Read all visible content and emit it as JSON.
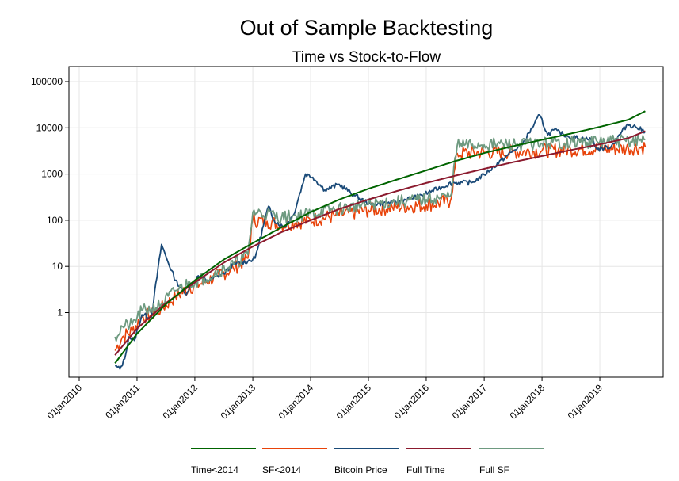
{
  "chart_data": {
    "type": "line",
    "title": "Out of Sample Backtesting",
    "subtitle": "Time vs Stock-to-Flow",
    "xlabel": "",
    "ylabel": "",
    "yscale": "log",
    "ylim": [
      0.03,
      200000
    ],
    "xlim": [
      "2010-01-01",
      "2020-01-01"
    ],
    "grid": true,
    "legend_position": "bottom",
    "x_ticks": [
      "01jan2010",
      "01jan2011",
      "01jan2012",
      "01jan2013",
      "01jan2014",
      "01jan2015",
      "01jan2016",
      "01jan2017",
      "01jan2018",
      "01jan2019"
    ],
    "y_ticks": [
      {
        "label": "1",
        "value": 1
      },
      {
        "label": "10",
        "value": 10
      },
      {
        "label": "100",
        "value": 100
      },
      {
        "label": "1000",
        "value": 1000
      },
      {
        "label": "10000",
        "value": 10000
      },
      {
        "label": "100000",
        "value": 100000
      }
    ],
    "series": [
      {
        "name": "Time<2014",
        "color": "#006400",
        "points": [
          [
            "2010-08-15",
            0.08
          ],
          [
            "2011-01-01",
            0.35
          ],
          [
            "2011-07-01",
            1.5
          ],
          [
            "2012-01-01",
            5
          ],
          [
            "2012-07-01",
            14
          ],
          [
            "2013-01-01",
            32
          ],
          [
            "2013-07-01",
            70
          ],
          [
            "2014-01-01",
            150
          ],
          [
            "2014-07-01",
            280
          ],
          [
            "2015-01-01",
            480
          ],
          [
            "2015-07-01",
            760
          ],
          [
            "2016-01-01",
            1200
          ],
          [
            "2016-07-01",
            1900
          ],
          [
            "2017-01-01",
            2850
          ],
          [
            "2017-07-01",
            4000
          ],
          [
            "2018-01-01",
            5500
          ],
          [
            "2018-07-01",
            7500
          ],
          [
            "2019-01-01",
            10500
          ],
          [
            "2019-07-01",
            15000
          ],
          [
            "2019-10-15",
            23000
          ]
        ]
      },
      {
        "name": "SF<2014",
        "color": "#e8430a",
        "points": [
          [
            "2010-08-15",
            0.15
          ],
          [
            "2010-10-01",
            0.3
          ],
          [
            "2010-12-01",
            0.4
          ],
          [
            "2011-02-01",
            0.8
          ],
          [
            "2011-04-01",
            0.9
          ],
          [
            "2011-06-01",
            1.2
          ],
          [
            "2011-09-01",
            2.2
          ],
          [
            "2011-12-01",
            3.5
          ],
          [
            "2012-03-01",
            4.5
          ],
          [
            "2012-06-01",
            6.5
          ],
          [
            "2012-09-01",
            9
          ],
          [
            "2012-12-01",
            15
          ],
          [
            "2013-01-01",
            100
          ],
          [
            "2013-04-01",
            95
          ],
          [
            "2013-07-01",
            80
          ],
          [
            "2013-10-01",
            90
          ],
          [
            "2014-01-01",
            100
          ],
          [
            "2014-06-01",
            125
          ],
          [
            "2015-01-01",
            165
          ],
          [
            "2015-06-01",
            190
          ],
          [
            "2016-01-01",
            215
          ],
          [
            "2016-06-01",
            260
          ],
          [
            "2016-07-15",
            2800
          ],
          [
            "2017-01-01",
            2900
          ],
          [
            "2017-07-01",
            3000
          ],
          [
            "2018-01-01",
            3200
          ],
          [
            "2018-07-01",
            3400
          ],
          [
            "2019-01-01",
            3500
          ],
          [
            "2019-07-01",
            3600
          ],
          [
            "2019-10-15",
            3900
          ]
        ]
      },
      {
        "name": "Bitcoin Price",
        "color": "#1a4a78",
        "points": [
          [
            "2010-08-15",
            0.07
          ],
          [
            "2010-09-15",
            0.06
          ],
          [
            "2010-10-15",
            0.1
          ],
          [
            "2010-11-10",
            0.3
          ],
          [
            "2010-12-15",
            0.25
          ],
          [
            "2011-02-01",
            0.9
          ],
          [
            "2011-04-01",
            0.8
          ],
          [
            "2011-06-05",
            30
          ],
          [
            "2011-07-10",
            14
          ],
          [
            "2011-09-01",
            5
          ],
          [
            "2011-11-01",
            2.5
          ],
          [
            "2012-01-15",
            6
          ],
          [
            "2012-04-01",
            5
          ],
          [
            "2012-07-01",
            7
          ],
          [
            "2012-09-01",
            11
          ],
          [
            "2012-12-01",
            13
          ],
          [
            "2013-01-15",
            15
          ],
          [
            "2013-04-10",
            200
          ],
          [
            "2013-05-15",
            100
          ],
          [
            "2013-07-15",
            70
          ],
          [
            "2013-09-15",
            130
          ],
          [
            "2013-11-30",
            1000
          ],
          [
            "2014-01-15",
            850
          ],
          [
            "2014-04-01",
            450
          ],
          [
            "2014-07-01",
            600
          ],
          [
            "2014-10-01",
            350
          ],
          [
            "2015-01-15",
            220
          ],
          [
            "2015-06-01",
            240
          ],
          [
            "2015-11-15",
            330
          ],
          [
            "2016-01-15",
            400
          ],
          [
            "2016-06-15",
            650
          ],
          [
            "2016-10-15",
            650
          ],
          [
            "2017-01-01",
            970
          ],
          [
            "2017-06-01",
            2600
          ],
          [
            "2017-09-01",
            4500
          ],
          [
            "2017-12-17",
            19000
          ],
          [
            "2018-02-06",
            7000
          ],
          [
            "2018-03-15",
            9000
          ],
          [
            "2018-06-15",
            6500
          ],
          [
            "2018-11-15",
            5500
          ],
          [
            "2018-12-15",
            3400
          ],
          [
            "2019-03-15",
            4000
          ],
          [
            "2019-06-25",
            12000
          ],
          [
            "2019-08-15",
            10500
          ],
          [
            "2019-10-15",
            8300
          ]
        ]
      },
      {
        "name": "Full Time",
        "color": "#8b1a2e",
        "points": [
          [
            "2010-08-15",
            0.12
          ],
          [
            "2011-01-01",
            0.45
          ],
          [
            "2011-07-01",
            1.6
          ],
          [
            "2012-01-01",
            4.5
          ],
          [
            "2012-07-01",
            12
          ],
          [
            "2013-01-01",
            27
          ],
          [
            "2013-07-01",
            55
          ],
          [
            "2014-01-01",
            100
          ],
          [
            "2014-07-01",
            175
          ],
          [
            "2015-01-01",
            280
          ],
          [
            "2015-07-01",
            430
          ],
          [
            "2016-01-01",
            640
          ],
          [
            "2016-07-01",
            920
          ],
          [
            "2017-01-01",
            1300
          ],
          [
            "2017-07-01",
            1800
          ],
          [
            "2018-01-01",
            2450
          ],
          [
            "2018-07-01",
            3300
          ],
          [
            "2019-01-01",
            4400
          ],
          [
            "2019-07-01",
            6000
          ],
          [
            "2019-10-15",
            8500
          ]
        ]
      },
      {
        "name": "Full SF",
        "color": "#6e9a80",
        "points": [
          [
            "2010-08-15",
            0.3
          ],
          [
            "2010-10-01",
            0.5
          ],
          [
            "2010-12-01",
            0.55
          ],
          [
            "2011-02-01",
            1.1
          ],
          [
            "2011-04-01",
            1.2
          ],
          [
            "2011-06-01",
            1.5
          ],
          [
            "2011-09-01",
            3
          ],
          [
            "2011-12-01",
            4.5
          ],
          [
            "2012-03-01",
            5.5
          ],
          [
            "2012-06-01",
            8
          ],
          [
            "2012-09-01",
            11
          ],
          [
            "2012-12-01",
            18
          ],
          [
            "2013-01-01",
            150
          ],
          [
            "2013-04-01",
            140
          ],
          [
            "2013-07-01",
            115
          ],
          [
            "2013-10-01",
            125
          ],
          [
            "2014-01-01",
            140
          ],
          [
            "2014-06-01",
            170
          ],
          [
            "2015-01-01",
            220
          ],
          [
            "2015-06-01",
            250
          ],
          [
            "2016-01-01",
            280
          ],
          [
            "2016-06-01",
            330
          ],
          [
            "2016-07-15",
            4200
          ],
          [
            "2017-01-01",
            4300
          ],
          [
            "2017-07-01",
            4400
          ],
          [
            "2018-01-01",
            4600
          ],
          [
            "2018-07-01",
            4800
          ],
          [
            "2019-01-01",
            5000
          ],
          [
            "2019-07-01",
            5200
          ],
          [
            "2019-10-15",
            5600
          ]
        ]
      }
    ]
  }
}
